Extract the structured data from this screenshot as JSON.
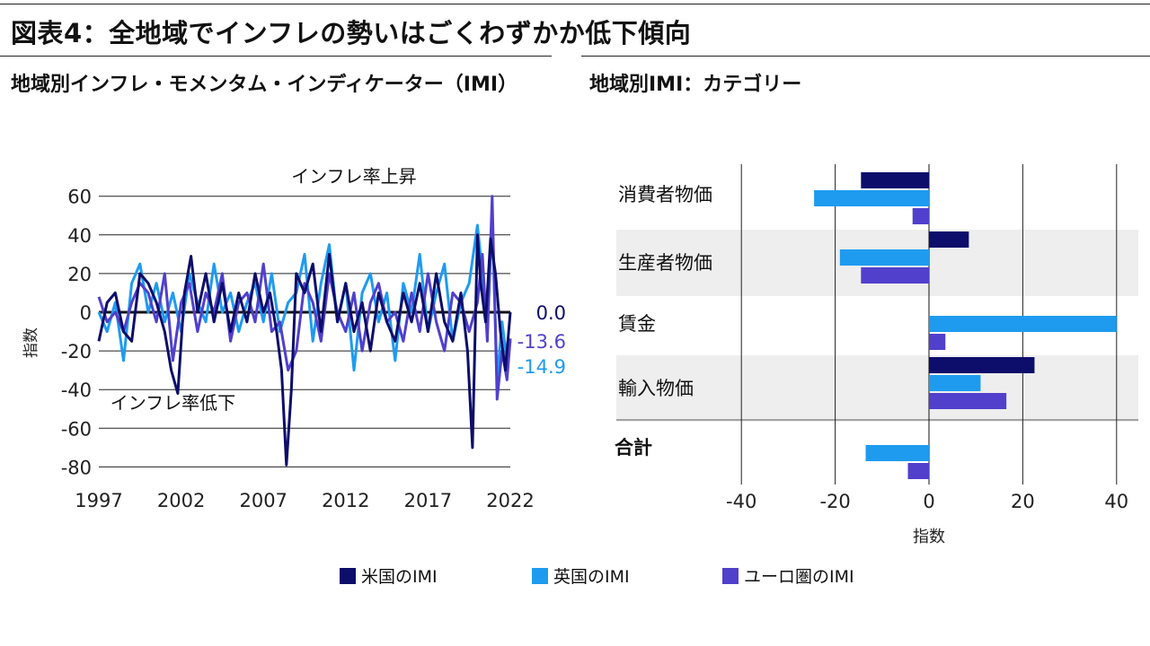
{
  "page": {
    "title": "図表4：全地域でインフレの勢いはごくわずかか低下傾向"
  },
  "chart_data": [
    {
      "type": "line",
      "title": "地域別インフレ・モメンタム・インディケーター（IMI）",
      "xlabel": "",
      "ylabel": "指数",
      "x_ticks": [
        "1997",
        "2002",
        "2007",
        "2012",
        "2017",
        "2022"
      ],
      "x_range": [
        1997,
        2022
      ],
      "y_ticks": [
        60,
        40,
        20,
        0,
        -20,
        -40,
        -60,
        -80
      ],
      "ylim": [
        -80,
        65
      ],
      "grid": "horizontal",
      "annotations": [
        {
          "text": "インフレ率上昇",
          "x": 2012.5,
          "y": 67
        },
        {
          "text": "インフレ率低下",
          "x": 2001.5,
          "y": -50
        }
      ],
      "end_labels": [
        {
          "text": "0.0",
          "series": 0,
          "value": 0.0
        },
        {
          "text": "-13.6",
          "series": 2,
          "value": -13.6
        },
        {
          "text": "-14.9",
          "series": 1,
          "value": -14.9
        }
      ],
      "series": [
        {
          "name": "米国のIMI",
          "color": "#0d0d6b",
          "x": [
            1997.0,
            1997.5,
            1998.0,
            1998.5,
            1999.0,
            1999.5,
            2000.0,
            2000.5,
            2001.0,
            2001.4,
            2001.8,
            2002.2,
            2002.6,
            2003.0,
            2003.5,
            2004.0,
            2004.5,
            2005.0,
            2005.5,
            2006.0,
            2006.5,
            2007.0,
            2007.4,
            2007.8,
            2008.1,
            2008.4,
            2008.7,
            2009.0,
            2009.5,
            2010.0,
            2010.5,
            2011.0,
            2011.5,
            2012.0,
            2012.5,
            2013.0,
            2013.5,
            2014.0,
            2014.5,
            2015.0,
            2015.5,
            2016.0,
            2016.5,
            2017.0,
            2017.5,
            2018.0,
            2018.5,
            2019.0,
            2019.4,
            2019.7,
            2020.0,
            2020.2,
            2020.5,
            2020.8,
            2021.1,
            2021.4,
            2021.7,
            2022.0
          ],
          "values": [
            -15,
            5,
            10,
            -10,
            -15,
            20,
            15,
            5,
            -10,
            -30,
            -42,
            10,
            29,
            0,
            20,
            -5,
            15,
            -10,
            10,
            -5,
            20,
            0,
            10,
            -10,
            -30,
            -79,
            -40,
            20,
            10,
            25,
            -10,
            30,
            -5,
            15,
            -10,
            5,
            -20,
            10,
            -5,
            -15,
            10,
            -5,
            15,
            -10,
            20,
            -5,
            -15,
            10,
            -20,
            -70,
            40,
            15,
            -5,
            38,
            20,
            -10,
            -30,
            0
          ]
        },
        {
          "name": "英国のIMI",
          "color": "#1e9bef",
          "x": [
            1997.0,
            1997.5,
            1998.0,
            1998.5,
            1999.0,
            1999.5,
            2000.0,
            2000.5,
            2001.0,
            2001.5,
            2002.0,
            2002.5,
            2003.0,
            2003.5,
            2004.0,
            2004.5,
            2005.0,
            2005.5,
            2006.0,
            2006.5,
            2007.0,
            2007.5,
            2008.0,
            2008.5,
            2009.0,
            2009.5,
            2010.0,
            2010.5,
            2011.0,
            2011.5,
            2012.0,
            2012.5,
            2013.0,
            2013.5,
            2014.0,
            2014.5,
            2015.0,
            2015.5,
            2016.0,
            2016.5,
            2017.0,
            2017.5,
            2018.0,
            2018.5,
            2019.0,
            2019.5,
            2020.0,
            2020.3,
            2020.6,
            2020.9,
            2021.2,
            2021.5,
            2021.8,
            2022.0
          ],
          "values": [
            0,
            -10,
            5,
            -25,
            15,
            25,
            0,
            15,
            -5,
            10,
            -10,
            20,
            5,
            -5,
            25,
            0,
            10,
            -10,
            5,
            15,
            -5,
            20,
            -10,
            5,
            10,
            30,
            -15,
            15,
            35,
            -5,
            15,
            -30,
            10,
            20,
            -5,
            10,
            -25,
            15,
            0,
            30,
            -10,
            10,
            25,
            -15,
            5,
            15,
            45,
            20,
            -10,
            48,
            -35,
            -5,
            -25,
            -14.9
          ]
        },
        {
          "name": "ユーロ圏のIMI",
          "color": "#5040cc",
          "x": [
            1997.0,
            1997.5,
            1998.0,
            1998.5,
            1999.0,
            1999.5,
            2000.0,
            2000.5,
            2001.0,
            2001.5,
            2002.0,
            2002.5,
            2003.0,
            2003.5,
            2004.0,
            2004.5,
            2005.0,
            2005.5,
            2006.0,
            2006.5,
            2007.0,
            2007.5,
            2008.0,
            2008.5,
            2009.0,
            2009.5,
            2010.0,
            2010.5,
            2011.0,
            2011.5,
            2012.0,
            2012.5,
            2013.0,
            2013.5,
            2014.0,
            2014.5,
            2015.0,
            2015.5,
            2016.0,
            2016.5,
            2017.0,
            2017.5,
            2018.0,
            2018.5,
            2019.0,
            2019.5,
            2020.0,
            2020.3,
            2020.6,
            2020.9,
            2021.2,
            2021.5,
            2021.8,
            2022.0
          ],
          "values": [
            8,
            -5,
            0,
            -10,
            5,
            15,
            10,
            -5,
            20,
            -25,
            5,
            15,
            -10,
            10,
            0,
            20,
            -15,
            5,
            10,
            -5,
            25,
            -10,
            -5,
            -30,
            -20,
            15,
            5,
            -15,
            20,
            0,
            -10,
            10,
            -20,
            5,
            15,
            -5,
            0,
            -15,
            10,
            -10,
            20,
            -5,
            -20,
            10,
            5,
            -10,
            5,
            30,
            -15,
            60,
            -45,
            -20,
            -35,
            -13.6
          ]
        }
      ]
    },
    {
      "type": "bar",
      "orientation": "horizontal",
      "title": "地域別IMI：カテゴリー",
      "xlabel": "指数",
      "ylabel": "",
      "x_ticks": [
        -40,
        -20,
        0,
        20,
        40
      ],
      "xlim": [
        -45,
        45
      ],
      "grid": "vertical",
      "categories": [
        "消費者物価",
        "生産者物価",
        "賃金",
        "輸入物価",
        "合計"
      ],
      "category_bold": [
        false,
        false,
        false,
        false,
        true
      ],
      "series": [
        {
          "name": "米国のIMI",
          "color": "#0d0d6b",
          "values": [
            -14.5,
            8.5,
            null,
            22.5,
            null
          ]
        },
        {
          "name": "英国のIMI",
          "color": "#1e9bef",
          "values": [
            -24.5,
            -19,
            40,
            11,
            -13.5
          ]
        },
        {
          "name": "ユーロ圏のIMI",
          "color": "#5040cc",
          "values": [
            -3.5,
            -14.5,
            3.5,
            16.5,
            -4.5
          ]
        }
      ]
    }
  ],
  "legend": [
    {
      "label": "米国のIMI",
      "color": "#0d0d6b"
    },
    {
      "label": "英国のIMI",
      "color": "#1e9bef"
    },
    {
      "label": "ユーロ圏のIMI",
      "color": "#5040cc"
    }
  ]
}
